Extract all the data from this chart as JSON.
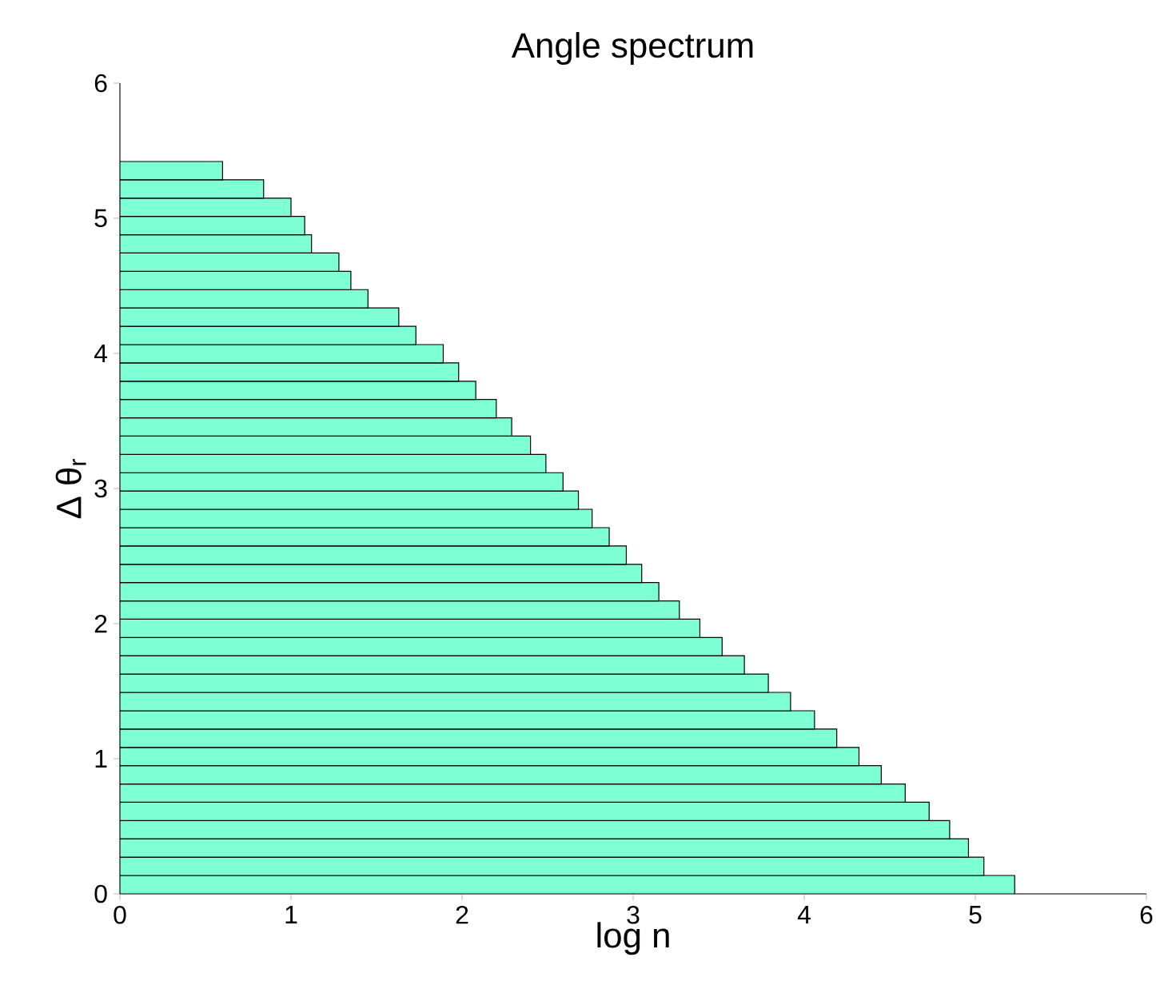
{
  "chart_data": {
    "type": "histogram",
    "orientation": "horizontal",
    "title": "Angle spectrum",
    "xlabel": "log n",
    "ylabel": "Δ θ$_{r}$",
    "bins": [
      0,
      0.136,
      0.271,
      0.407,
      0.542,
      0.678,
      0.813,
      0.949,
      1.084,
      1.22,
      1.355,
      1.491,
      1.626,
      1.762,
      1.897,
      2.033,
      2.168,
      2.304,
      2.439,
      2.575,
      2.71,
      2.846,
      2.981,
      3.117,
      3.252,
      3.388,
      3.523,
      3.659,
      3.794,
      3.93,
      4.065,
      4.201,
      4.336,
      4.472,
      4.607,
      4.743,
      4.878,
      5.014,
      5.149,
      5.285,
      5.42
    ],
    "values": [
      5.23,
      5.05,
      4.96,
      4.85,
      4.73,
      4.59,
      4.45,
      4.32,
      4.19,
      4.06,
      3.92,
      3.79,
      3.65,
      3.52,
      3.39,
      3.27,
      3.15,
      3.05,
      2.96,
      2.86,
      2.76,
      2.68,
      2.59,
      2.49,
      2.4,
      2.29,
      2.2,
      2.08,
      1.98,
      1.89,
      1.73,
      1.63,
      1.45,
      1.35,
      1.28,
      1.12,
      1.08,
      1.0,
      0.84,
      0.6
    ],
    "color": "#7fffd4",
    "xlim": [
      0,
      6
    ],
    "ylim": [
      0,
      6
    ],
    "xticks": [
      0,
      1,
      2,
      3,
      4,
      5,
      6
    ],
    "yticks": [
      0,
      1,
      2,
      3,
      4,
      5,
      6
    ]
  }
}
